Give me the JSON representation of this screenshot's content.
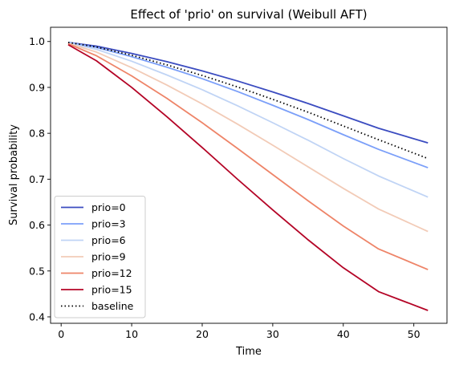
{
  "chart_data": {
    "type": "line",
    "title": "Effect of 'prio' on survival (Weibull AFT)",
    "xlabel": "Time",
    "ylabel": "Survival probability",
    "xlim": [
      -1.5,
      54.7
    ],
    "ylim": [
      0.386,
      1.031
    ],
    "xticks": [
      0,
      10,
      20,
      30,
      40,
      50
    ],
    "xtick_labels": [
      "0",
      "10",
      "20",
      "30",
      "40",
      "50"
    ],
    "yticks": [
      0.4,
      0.5,
      0.6,
      0.7,
      0.8,
      0.9,
      1.0
    ],
    "ytick_labels": [
      "0.4",
      "0.5",
      "0.6",
      "0.7",
      "0.8",
      "0.9",
      "1.0"
    ],
    "grid": false,
    "legend": "lower-left",
    "x": [
      1,
      5,
      10,
      15,
      20,
      25,
      30,
      35,
      40,
      45,
      52
    ],
    "series": [
      {
        "name": "prio=0",
        "color": "#3b4cc0",
        "dash": "solid",
        "values": [
          0.998,
          0.99,
          0.974,
          0.956,
          0.936,
          0.914,
          0.89,
          0.865,
          0.838,
          0.811,
          0.779
        ]
      },
      {
        "name": "prio=3",
        "color": "#7b9ff9",
        "dash": "solid",
        "values": [
          0.998,
          0.987,
          0.967,
          0.944,
          0.919,
          0.891,
          0.861,
          0.83,
          0.797,
          0.765,
          0.725
        ]
      },
      {
        "name": "prio=6",
        "color": "#c0d4f5",
        "dash": "solid",
        "values": [
          0.997,
          0.983,
          0.957,
          0.927,
          0.895,
          0.86,
          0.823,
          0.785,
          0.745,
          0.707,
          0.661
        ]
      },
      {
        "name": "prio=9",
        "color": "#f2cbb7",
        "dash": "solid",
        "values": [
          0.996,
          0.977,
          0.943,
          0.905,
          0.864,
          0.82,
          0.774,
          0.727,
          0.68,
          0.635,
          0.586
        ]
      },
      {
        "name": "prio=12",
        "color": "#ee8468",
        "dash": "solid",
        "values": [
          0.995,
          0.969,
          0.925,
          0.876,
          0.823,
          0.767,
          0.71,
          0.653,
          0.598,
          0.548,
          0.503
        ]
      },
      {
        "name": "prio=15",
        "color": "#b40426",
        "dash": "solid",
        "values": [
          0.993,
          0.958,
          0.9,
          0.836,
          0.769,
          0.7,
          0.633,
          0.568,
          0.507,
          0.455,
          0.414
        ]
      },
      {
        "name": "baseline",
        "color": "#000000",
        "dash": "dotted",
        "values": [
          0.998,
          0.988,
          0.97,
          0.949,
          0.926,
          0.901,
          0.874,
          0.846,
          0.816,
          0.786,
          0.745
        ]
      }
    ]
  }
}
